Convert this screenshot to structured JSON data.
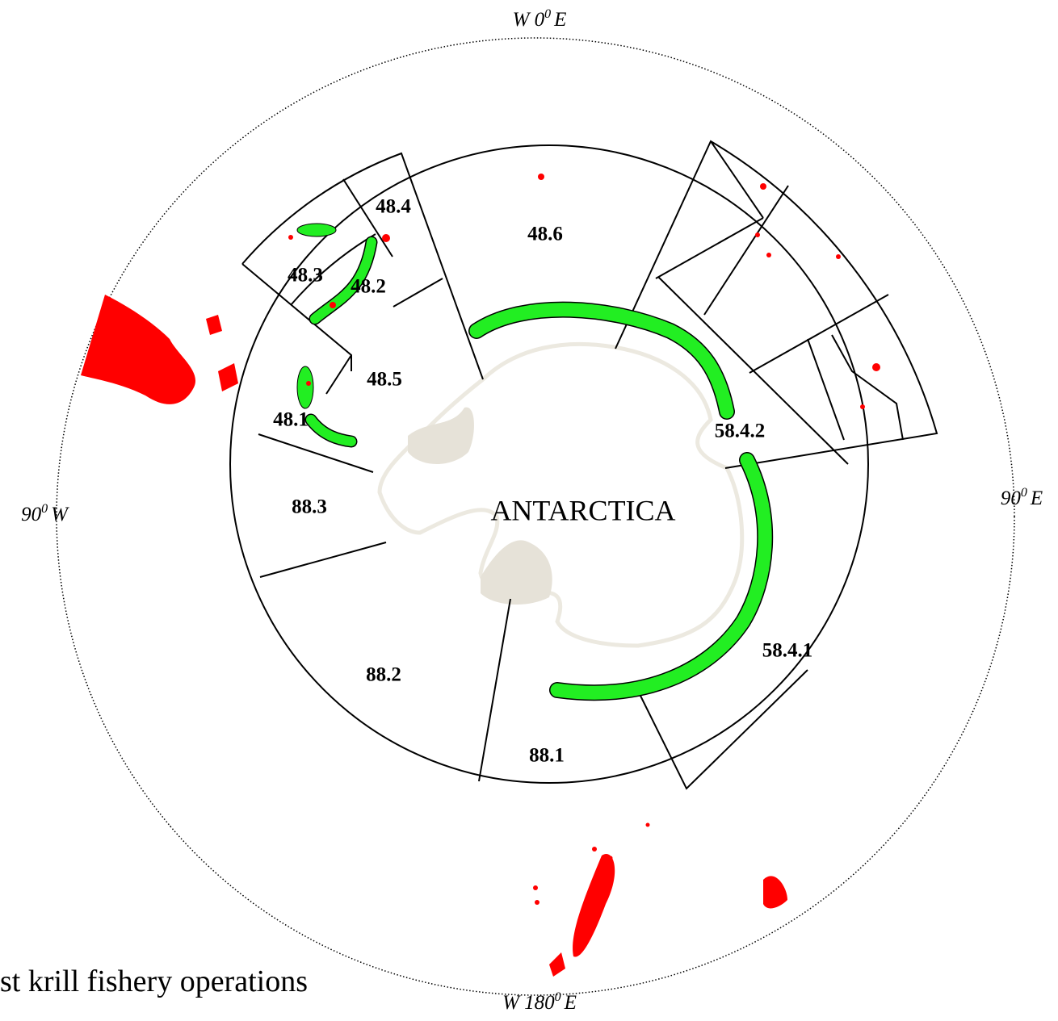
{
  "compass": {
    "top": {
      "main": "W 0",
      "sup": "0",
      "end": "E"
    },
    "bottom": {
      "main": "W 180",
      "sup": "0",
      "end": "E"
    },
    "left": {
      "main": "90",
      "sup": "0",
      "end": "W"
    },
    "right": {
      "main": "90",
      "sup": "0",
      "end": "E"
    }
  },
  "areas": [
    "48.1",
    "48.2",
    "48.3",
    "48.4",
    "48.5",
    "48.6",
    "58.4.1",
    "58.4.2",
    "88.1",
    "88.2",
    "88.3"
  ],
  "continent": "ANTARCTICA",
  "caption": "st krill fishery operations"
}
